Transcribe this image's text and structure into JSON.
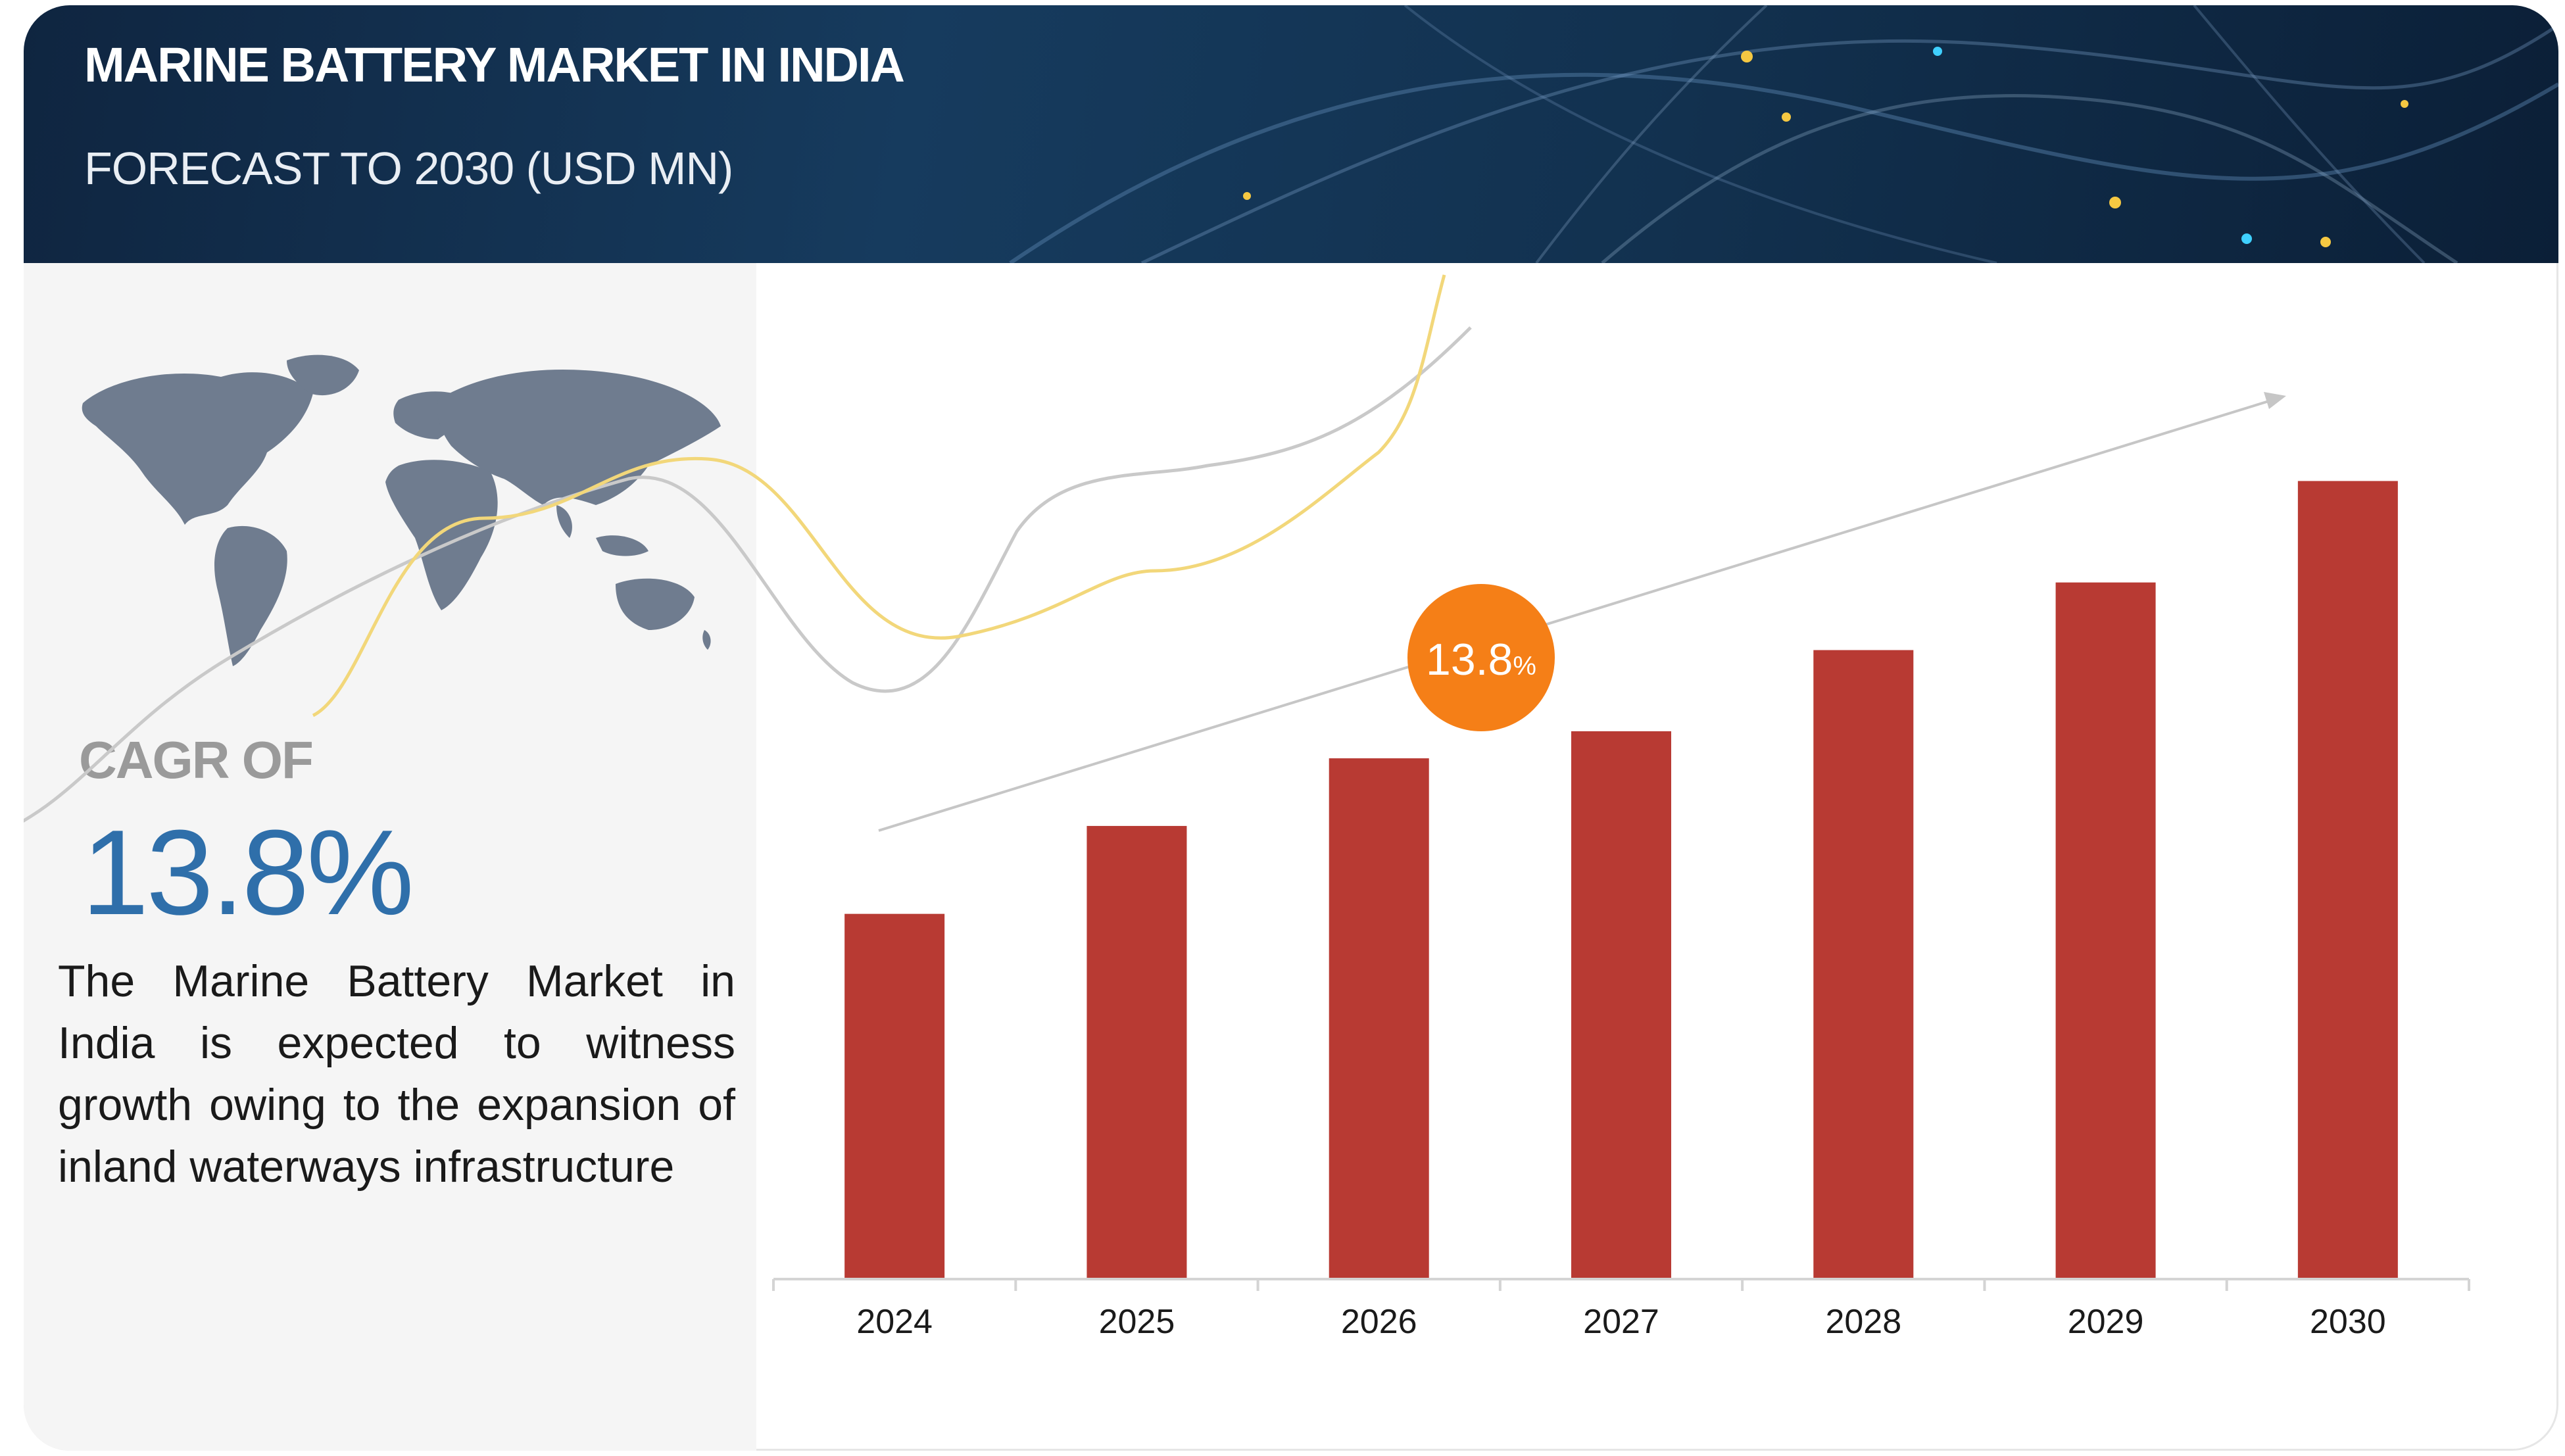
{
  "header": {
    "title": "MARINE BATTERY MARKET IN INDIA",
    "subtitle": "FORECAST TO 2030 (USD MN)"
  },
  "summary": {
    "cagr_label": "CAGR OF",
    "cagr_value": "13.8%",
    "description": "The Marine Battery Market in India is expected to witness growth owing to the expansion of inland waterways infrastructure",
    "map_icon": "world-map-icon"
  },
  "colors": {
    "bar": "#b83a33",
    "badge": "#f57f17",
    "cagr_text": "#2f6faa",
    "header_bg": "#163b5e"
  },
  "chart_data": {
    "type": "bar",
    "categories": [
      "2024",
      "2025",
      "2026",
      "2027",
      "2028",
      "2029",
      "2030"
    ],
    "values": [
      54,
      67,
      77,
      81,
      93,
      103,
      118
    ],
    "title": "",
    "xlabel": "",
    "ylabel": "",
    "ylim": [
      0,
      130
    ],
    "y_axis_shown": false,
    "grid": false,
    "legend": "none",
    "annotations": [
      {
        "type": "growth-arrow",
        "badge_value": "13.8",
        "badge_unit": "%"
      }
    ]
  }
}
